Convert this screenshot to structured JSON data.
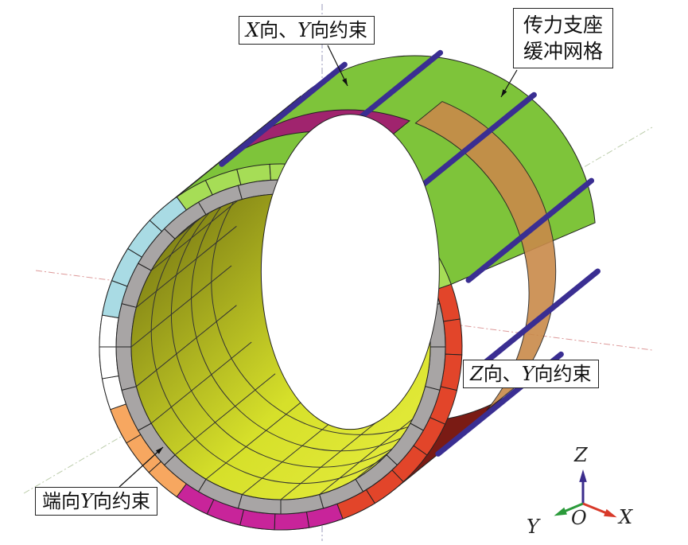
{
  "labels": {
    "top": {
      "var1": "X",
      "text1": "向、",
      "var2": "Y",
      "text2": "向约束"
    },
    "right_top": {
      "line1": "传力支座",
      "line2": "缓冲网格"
    },
    "right_mid": {
      "var1": "Z",
      "text1": "向、",
      "var2": "Y",
      "text2": "向约束"
    },
    "bottom_left": {
      "text1": "端向",
      "var1": "Y",
      "text2": "向约束"
    }
  },
  "axes": {
    "z": "Z",
    "y": "Y",
    "x": "X",
    "origin": "O"
  },
  "colors": {
    "light_blue": "#a9dbe4",
    "white": "#ffffff",
    "orange": "#f7a760",
    "magenta": "#c8249a",
    "red": "#e2452a",
    "light_green": "#a6dd56",
    "green": "#7ec43a",
    "dark_red": "#7a1b14",
    "tan": "#c98a4a",
    "purple_band": "#a0246e",
    "gray_ring": "#a8a5a5",
    "inner_yellow": "#d6e02a",
    "rod": "#3a2e92",
    "axis_z": "#3b2c8c",
    "axis_y": "#2a9a3a",
    "axis_x": "#d83a2a"
  }
}
